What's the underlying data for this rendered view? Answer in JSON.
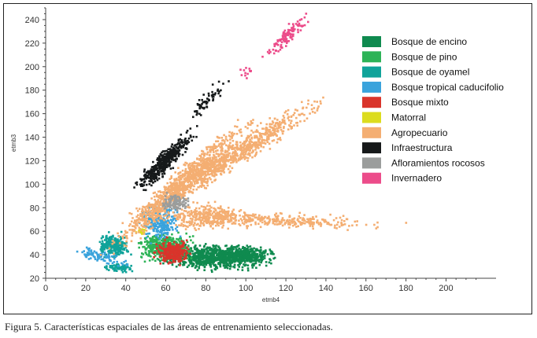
{
  "caption": "Figura 5. Características espaciales de las áreas de entrenamiento seleccionadas.",
  "chart_data": {
    "type": "scatter",
    "xlabel": "etmb4",
    "ylabel": "etmb3",
    "xlim": [
      0,
      225
    ],
    "ylim": [
      20,
      250
    ],
    "x_ticks": [
      "0",
      "20",
      "40",
      "60",
      "80",
      "100",
      "120",
      "140",
      "160",
      "180",
      "200"
    ],
    "y_ticks": [
      "20",
      "40",
      "60",
      "80",
      "100",
      "120",
      "140",
      "160",
      "180",
      "200",
      "220",
      "240"
    ],
    "legend_position": "right",
    "series": [
      {
        "name": "Bosque de encino",
        "color": "#0f8a4f",
        "regions": [
          {
            "cx": 85,
            "cy": 38,
            "rx": 20,
            "ry": 8,
            "angle": 0,
            "n": 950
          },
          {
            "cx": 100,
            "cy": 40,
            "rx": 10,
            "ry": 5,
            "angle": 0,
            "n": 220
          }
        ]
      },
      {
        "name": "Bosque de pino",
        "color": "#2db357",
        "regions": [
          {
            "cx": 60,
            "cy": 46,
            "rx": 10,
            "ry": 9,
            "angle": 0,
            "n": 520
          }
        ]
      },
      {
        "name": "Bosque de oyamel",
        "color": "#10a39a",
        "regions": [
          {
            "cx": 34,
            "cy": 48,
            "rx": 6,
            "ry": 8,
            "angle": 0,
            "n": 260
          },
          {
            "cx": 36,
            "cy": 29,
            "rx": 6,
            "ry": 3,
            "angle": 0,
            "n": 80
          }
        ]
      },
      {
        "name": "Bosque tropical caducifolio",
        "color": "#3aa3dc",
        "regions": [
          {
            "cx": 57,
            "cy": 68,
            "rx": 7,
            "ry": 12,
            "angle": 0,
            "n": 260
          },
          {
            "cx": 28,
            "cy": 38,
            "rx": 10,
            "ry": 4,
            "angle": -30,
            "n": 90
          }
        ]
      },
      {
        "name": "Bosque mixto",
        "color": "#d9342b",
        "regions": [
          {
            "cx": 64,
            "cy": 42,
            "rx": 7,
            "ry": 8,
            "angle": 0,
            "n": 280
          }
        ]
      },
      {
        "name": "Matorral",
        "color": "#dcdc1e",
        "regions": [
          {
            "cx": 48,
            "cy": 60,
            "rx": 2,
            "ry": 2,
            "angle": 0,
            "n": 25
          }
        ]
      },
      {
        "name": "Agropecuario",
        "color": "#f4ae72",
        "regions": [
          {
            "cx": 68,
            "cy": 100,
            "rx": 48,
            "ry": 6,
            "angle": 58,
            "n": 950
          },
          {
            "cx": 95,
            "cy": 125,
            "rx": 48,
            "ry": 6,
            "angle": 48,
            "n": 750
          },
          {
            "cx": 110,
            "cy": 70,
            "rx": 45,
            "ry": 5,
            "angle": -4,
            "n": 380
          },
          {
            "cx": 80,
            "cy": 72,
            "rx": 14,
            "ry": 10,
            "angle": 0,
            "n": 250
          }
        ]
      },
      {
        "name": "Infraestructura",
        "color": "#16191a",
        "regions": [
          {
            "cx": 60,
            "cy": 120,
            "rx": 22,
            "ry": 4,
            "angle": 62,
            "n": 420
          },
          {
            "cx": 80,
            "cy": 170,
            "rx": 18,
            "ry": 3,
            "angle": 62,
            "n": 60
          }
        ]
      },
      {
        "name": "Afloramientos rocosos",
        "color": "#9b9d9c",
        "regions": [
          {
            "cx": 65,
            "cy": 84,
            "rx": 5,
            "ry": 6,
            "angle": 0,
            "n": 110
          }
        ]
      },
      {
        "name": "Invernadero",
        "color": "#ec4c8a",
        "regions": [
          {
            "cx": 120,
            "cy": 225,
            "rx": 16,
            "ry": 3,
            "angle": 60,
            "n": 110
          },
          {
            "cx": 100,
            "cy": 195,
            "rx": 4,
            "ry": 3,
            "angle": 60,
            "n": 12
          }
        ]
      }
    ]
  }
}
